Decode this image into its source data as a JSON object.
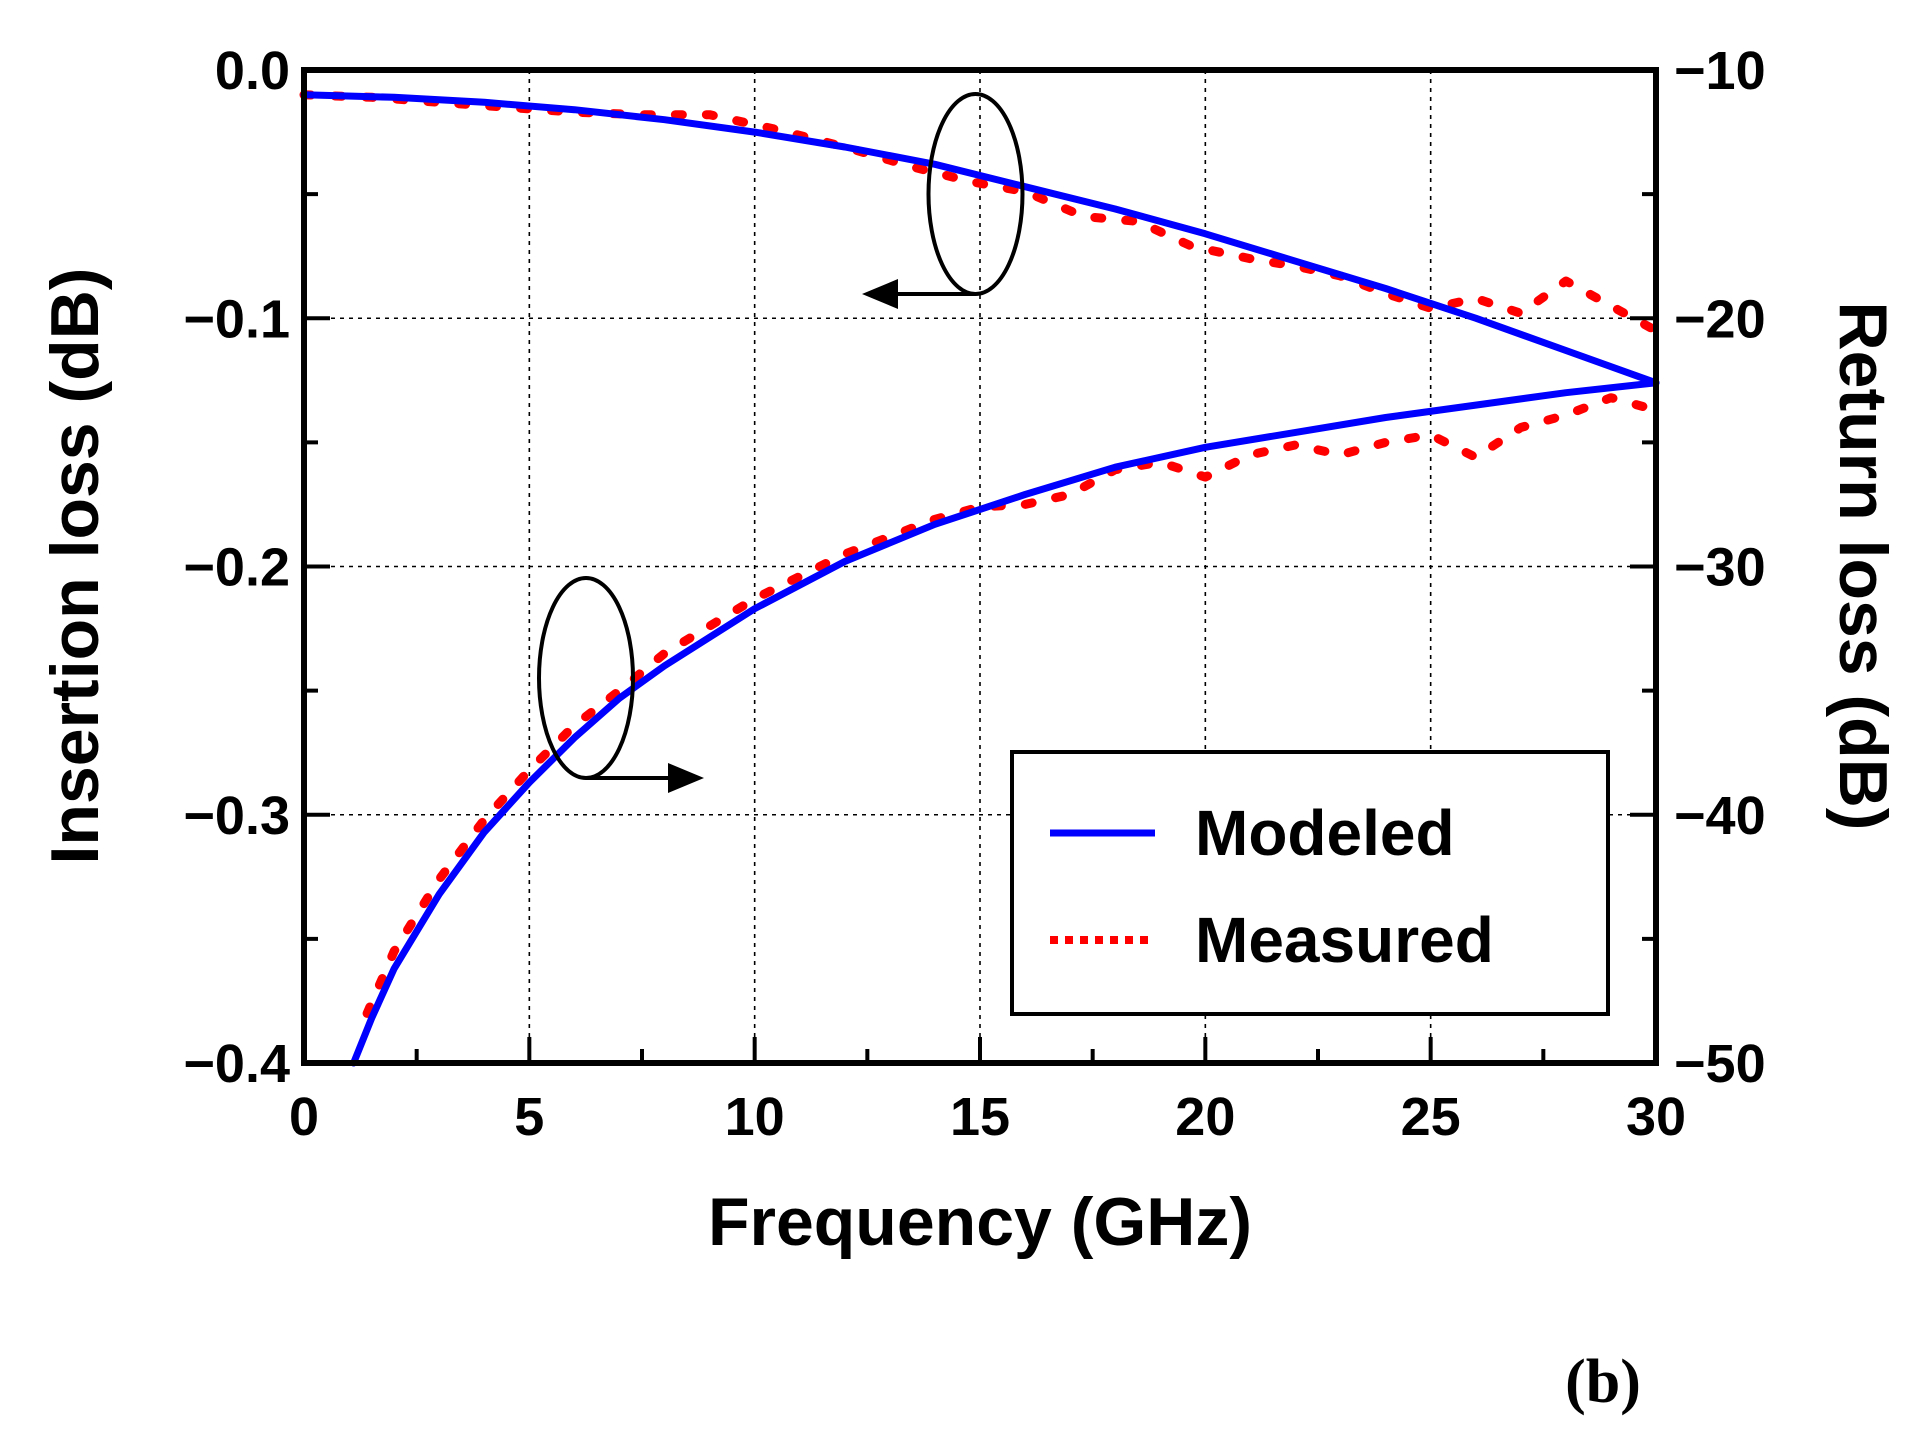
{
  "chart_data": {
    "type": "line",
    "panel_label": "(b)",
    "xlabel": "Frequency (GHz)",
    "ylabel_left": "Insertion loss (dB)",
    "ylabel_right": "Return loss (dB)",
    "xlim": [
      0,
      30
    ],
    "ylim_left": [
      -0.4,
      0.0
    ],
    "ylim_right": [
      -50,
      -10
    ],
    "x_ticks": [
      "0",
      "5",
      "10",
      "15",
      "20",
      "25",
      "30"
    ],
    "y_left_ticks": [
      "0.0",
      "−0.1",
      "−0.2",
      "−0.3",
      "−0.4"
    ],
    "y_right_ticks": [
      "−10",
      "−20",
      "−30",
      "−40",
      "−50"
    ],
    "grid": true,
    "legend": {
      "position": "bottom-right",
      "entries": [
        {
          "label": "Modeled",
          "color": "#0000ff",
          "style": "solid"
        },
        {
          "label": "Measured",
          "color": "#ff0000",
          "style": "dotted"
        }
      ]
    },
    "series": [
      {
        "name": "Modeled insertion loss",
        "axis": "left",
        "color": "#0000ff",
        "style": "solid",
        "x": [
          0,
          2,
          4,
          6,
          8,
          10,
          12,
          14,
          16,
          18,
          20,
          22,
          24,
          26,
          28,
          30
        ],
        "y": [
          -0.01,
          -0.011,
          -0.013,
          -0.016,
          -0.02,
          -0.025,
          -0.031,
          -0.038,
          -0.047,
          -0.056,
          -0.066,
          -0.077,
          -0.088,
          -0.1,
          -0.113,
          -0.126
        ]
      },
      {
        "name": "Measured insertion loss",
        "axis": "left",
        "color": "#ff0000",
        "style": "dotted",
        "x": [
          0,
          1.5,
          3,
          4.5,
          6,
          7.5,
          9,
          10.5,
          12,
          13.5,
          14.8,
          16,
          17.3,
          18.5,
          19.7,
          21,
          22,
          23,
          24,
          25,
          26,
          27,
          28,
          29,
          30
        ],
        "y": [
          -0.01,
          -0.011,
          -0.013,
          -0.015,
          -0.017,
          -0.018,
          -0.018,
          -0.024,
          -0.031,
          -0.039,
          -0.045,
          -0.049,
          -0.059,
          -0.061,
          -0.071,
          -0.076,
          -0.079,
          -0.083,
          -0.09,
          -0.096,
          -0.092,
          -0.098,
          -0.085,
          -0.095,
          -0.105
        ]
      },
      {
        "name": "Modeled return loss",
        "axis": "right",
        "color": "#0000ff",
        "style": "solid",
        "x": [
          1.1,
          1.5,
          2,
          3,
          4,
          5,
          6,
          7,
          8,
          10,
          12,
          14,
          15,
          16,
          18,
          20,
          22,
          24,
          26,
          28,
          30
        ],
        "y": [
          -50.0,
          -48.2,
          -46.2,
          -43.2,
          -40.7,
          -38.7,
          -36.9,
          -35.3,
          -34.0,
          -31.7,
          -29.8,
          -28.3,
          -27.7,
          -27.1,
          -26.0,
          -25.2,
          -24.6,
          -24.0,
          -23.5,
          -23.0,
          -22.6
        ]
      },
      {
        "name": "Measured return loss",
        "axis": "right",
        "color": "#ff0000",
        "style": "dotted",
        "x": [
          1.4,
          2,
          3,
          4,
          5,
          6,
          7,
          8,
          9,
          10,
          11,
          12,
          13,
          14,
          15,
          16,
          17,
          18,
          19,
          20,
          21,
          22,
          23,
          24,
          25,
          26,
          27,
          28,
          29,
          30
        ],
        "y": [
          -48.0,
          -45.5,
          -42.6,
          -40.2,
          -38.2,
          -36.4,
          -35.0,
          -33.5,
          -32.4,
          -31.3,
          -30.4,
          -29.5,
          -28.8,
          -28.1,
          -27.6,
          -27.5,
          -27.1,
          -26.1,
          -25.8,
          -26.4,
          -25.5,
          -25.1,
          -25.5,
          -25.0,
          -24.7,
          -25.6,
          -24.4,
          -23.9,
          -23.2,
          -23.7
        ]
      }
    ],
    "annotations": [
      {
        "type": "ellipse-arrow",
        "points_to": "left-axis",
        "near_x": 15,
        "near_series": "insertion loss"
      },
      {
        "type": "ellipse-arrow",
        "points_to": "right-axis",
        "near_x": 6.5,
        "near_series": "return loss"
      }
    ]
  }
}
